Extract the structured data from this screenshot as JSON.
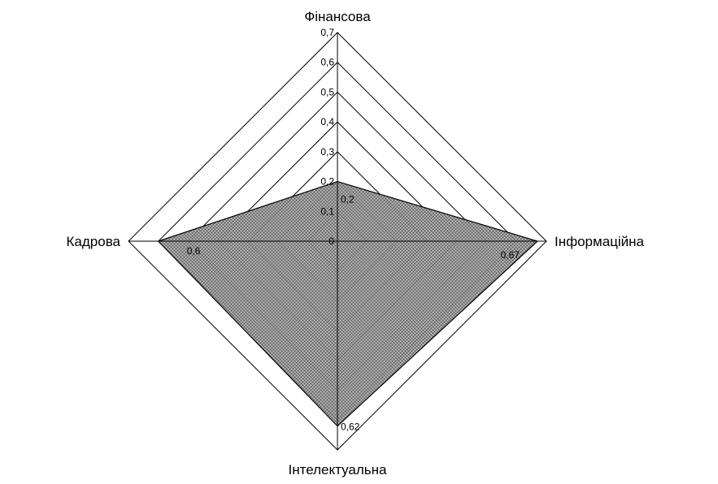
{
  "chart_data": {
    "type": "radar",
    "categories": [
      "Фінансова",
      "Інформаційна",
      "Інтелектуальна",
      "Кадрова"
    ],
    "values": [
      0.2,
      0.67,
      0.62,
      0.6
    ],
    "data_labels": [
      "0,2",
      "0,67",
      "0,62",
      "0,6"
    ],
    "r_range": [
      0,
      0.7
    ],
    "r_ticks": [
      0,
      0.1,
      0.2,
      0.3,
      0.4,
      0.5,
      0.6,
      0.7
    ],
    "r_tick_labels": [
      "0",
      "0,1",
      "0,2",
      "0,3",
      "0,4",
      "0,5",
      "0,6",
      "0,7"
    ],
    "grid": true,
    "legend": "none",
    "title": "",
    "fill_color": "#808080",
    "line_color": "#000000"
  }
}
